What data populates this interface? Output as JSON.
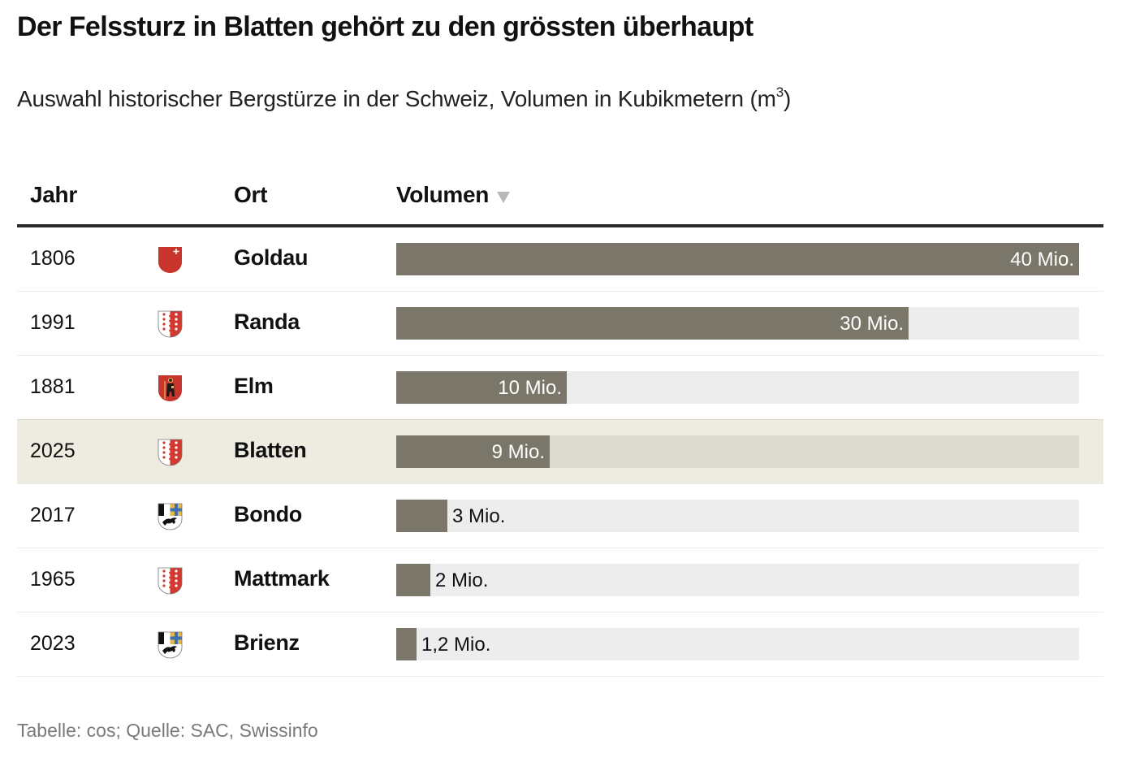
{
  "title": "Der Felssturz in Blatten gehört zu den grössten überhaupt",
  "subtitle": {
    "text": "Auswahl historischer Bergstürze in der Schweiz, Volumen in Kubikmetern (m",
    "superscript": "3",
    "closing": ")"
  },
  "table": {
    "headers": {
      "year": "Jahr",
      "place": "Ort",
      "volume": "Volumen",
      "sort_icon": "sort-descending-triangle-icon"
    },
    "colors": {
      "bar": "#7a7669",
      "track": "#ededed",
      "highlight_row": "#eeebe0",
      "highlight_track": "#dddad2",
      "header_rule": "#2b2b2b"
    }
  },
  "chart_data": {
    "type": "bar",
    "orientation": "horizontal",
    "title": "Der Felssturz in Blatten gehört zu den grössten überhaupt",
    "subtitle": "Auswahl historischer Bergstürze in der Schweiz, Volumen in Kubikmetern (m³)",
    "xlabel": "Volumen",
    "unit": "Mio. m³",
    "xlim": [
      0,
      40
    ],
    "grid": false,
    "legend": "none",
    "highlight": "Blatten",
    "rows": [
      {
        "year": "1806",
        "place": "Goldau",
        "crest": "schwyz-crest-icon",
        "value": 40,
        "label": "40 Mio."
      },
      {
        "year": "1991",
        "place": "Randa",
        "crest": "valais-crest-icon",
        "value": 30,
        "label": "30 Mio."
      },
      {
        "year": "1881",
        "place": "Elm",
        "crest": "glarus-crest-icon",
        "value": 10,
        "label": "10 Mio."
      },
      {
        "year": "2025",
        "place": "Blatten",
        "crest": "valais-crest-icon",
        "value": 9,
        "label": "9 Mio.",
        "highlight": true
      },
      {
        "year": "2017",
        "place": "Bondo",
        "crest": "graubuenden-crest-icon",
        "value": 3,
        "label": "3 Mio."
      },
      {
        "year": "1965",
        "place": "Mattmark",
        "crest": "valais-crest-icon",
        "value": 2,
        "label": "2 Mio."
      },
      {
        "year": "2023",
        "place": "Brienz",
        "crest": "graubuenden-crest-icon",
        "value": 1.2,
        "label": "1,2 Mio."
      }
    ]
  },
  "footer": "Tabelle: cos; Quelle: SAC, Swissinfo"
}
